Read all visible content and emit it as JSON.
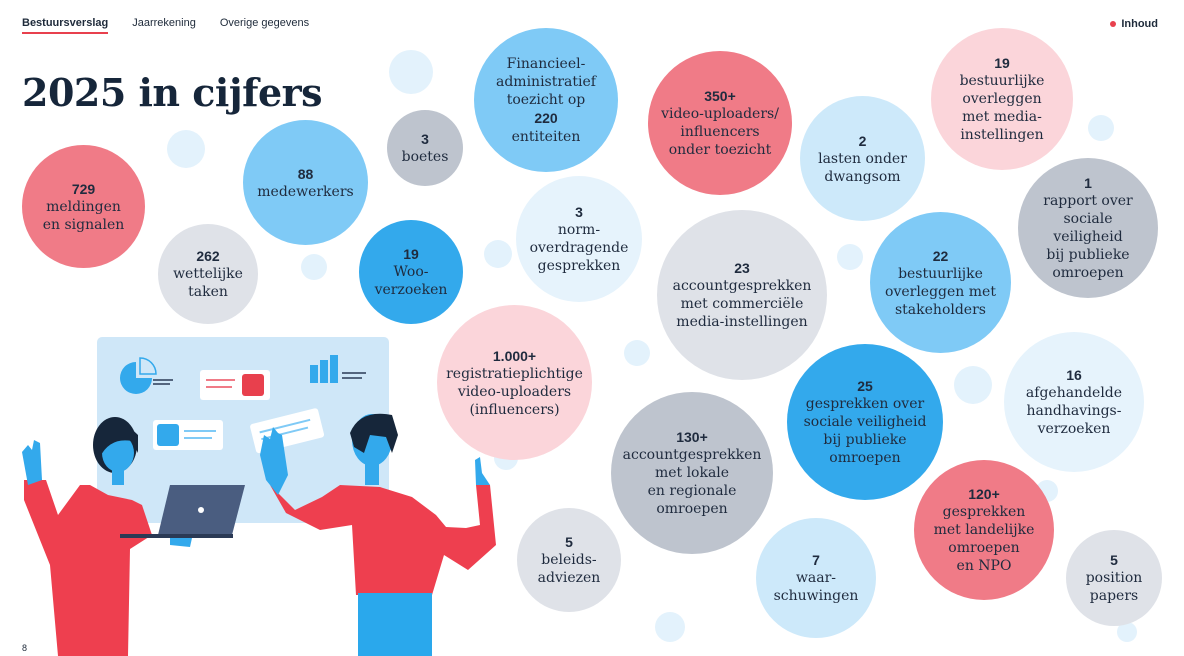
{
  "nav": {
    "tabs": [
      {
        "label": "Bestuursverslag",
        "active": true
      },
      {
        "label": "Jaarrekening",
        "active": false
      },
      {
        "label": "Overige gegevens",
        "active": false
      }
    ],
    "toc_label": "Inhoud"
  },
  "page": {
    "title": "2025 in cijfers",
    "page_number": "8"
  },
  "colors": {
    "accent_red": "#e8404d",
    "bubble_red": "#f07b87",
    "bubble_blue": "#33a9ec",
    "navy": "#16263a"
  },
  "bubbles": [
    {
      "value": "729",
      "text": "meldingen\nen signalen"
    },
    {
      "value": "262",
      "text": "wettelijke\ntaken"
    },
    {
      "value": "88",
      "text": "medewerkers"
    },
    {
      "value": "3",
      "text": "boetes"
    },
    {
      "value": "19",
      "text": "Woo-\nverzoeken"
    },
    {
      "value": "",
      "text": "Financieel-\nadministratief\ntoezicht op",
      "suffix_value": "220",
      "suffix_text": "entiteiten"
    },
    {
      "value": "3",
      "text": "norm-\noverdragende\ngesprekken"
    },
    {
      "value": "350+",
      "text": "video-uploaders/\ninfluencers\nonder toezicht"
    },
    {
      "value": "2",
      "text": "lasten onder\ndwangsom"
    },
    {
      "value": "19",
      "text": "bestuurlijke\noverleggen\nmet media-\ninstellingen"
    },
    {
      "value": "1",
      "text": "rapport over\nsociale veiligheid\nbij publieke\nomroepen"
    },
    {
      "value": "23",
      "text": "accountgesprekken\nmet commerciële\nmedia-instellingen"
    },
    {
      "value": "22",
      "text": "bestuurlijke\noverleggen met\nstakeholders"
    },
    {
      "value": "1.000+",
      "text": "registratieplichtige\nvideo-uploaders\n(influencers)"
    },
    {
      "value": "25",
      "text": "gesprekken over\nsociale veiligheid\nbij publieke\nomroepen"
    },
    {
      "value": "16",
      "text": "afgehandelde\nhandhavings-\nverzoeken"
    },
    {
      "value": "130+",
      "text": "accountgesprekken\nmet lokale\nen regionale\nomroepen"
    },
    {
      "value": "120+",
      "text": "gesprekken\nmet landelijke\nomroepen\nen NPO"
    },
    {
      "value": "5",
      "text": "beleids-\nadviezen"
    },
    {
      "value": "7",
      "text": "waar-\nschuwingen"
    },
    {
      "value": "5",
      "text": "position\npapers"
    }
  ]
}
